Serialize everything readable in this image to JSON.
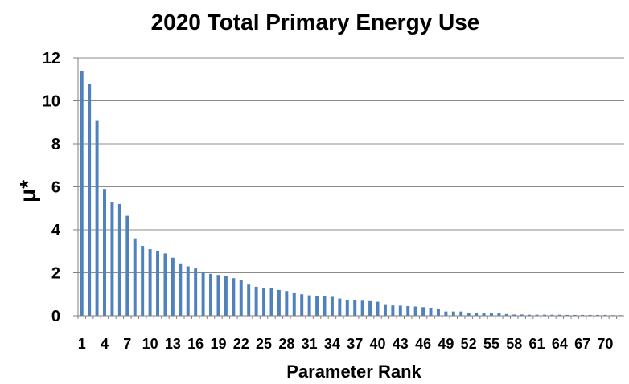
{
  "chart_data": {
    "type": "bar",
    "title": "2020 Total Primary Energy Use",
    "xlabel": "Parameter Rank",
    "ylabel": "μ*",
    "ylim": [
      0,
      12
    ],
    "yticks": [
      0,
      2,
      4,
      6,
      8,
      10,
      12
    ],
    "grid": true,
    "legend": "none",
    "bar_color": "#4F81BD",
    "grid_color": "#8C8C8C",
    "categories": [
      1,
      2,
      3,
      4,
      5,
      6,
      7,
      8,
      9,
      10,
      11,
      12,
      13,
      14,
      15,
      16,
      17,
      18,
      19,
      20,
      21,
      22,
      23,
      24,
      25,
      26,
      27,
      28,
      29,
      30,
      31,
      32,
      33,
      34,
      35,
      36,
      37,
      38,
      39,
      40,
      41,
      42,
      43,
      44,
      45,
      46,
      47,
      48,
      49,
      50,
      51,
      52,
      53,
      54,
      55,
      56,
      57,
      58,
      59,
      60,
      61,
      62,
      63,
      64,
      65,
      66,
      67,
      68,
      69,
      70,
      71,
      72
    ],
    "values": [
      11.4,
      10.8,
      9.1,
      5.9,
      5.3,
      5.2,
      4.65,
      3.6,
      3.25,
      3.1,
      3.0,
      2.9,
      2.7,
      2.4,
      2.3,
      2.2,
      2.05,
      1.95,
      1.9,
      1.85,
      1.75,
      1.65,
      1.45,
      1.35,
      1.3,
      1.3,
      1.2,
      1.15,
      1.05,
      1.0,
      0.95,
      0.92,
      0.9,
      0.88,
      0.8,
      0.75,
      0.72,
      0.7,
      0.68,
      0.65,
      0.5,
      0.48,
      0.47,
      0.45,
      0.43,
      0.4,
      0.35,
      0.3,
      0.2,
      0.2,
      0.2,
      0.15,
      0.15,
      0.12,
      0.12,
      0.12,
      0.08,
      0.06,
      0.06,
      0.05,
      0.05,
      0.05,
      0.05,
      0.05,
      0.04,
      0.04,
      0.04,
      0.04,
      0.04,
      0.04,
      0.03,
      0.03
    ],
    "xtick_labels": [
      1,
      4,
      7,
      10,
      13,
      16,
      19,
      22,
      25,
      28,
      31,
      34,
      37,
      40,
      43,
      46,
      49,
      52,
      55,
      58,
      61,
      64,
      67,
      70
    ]
  }
}
